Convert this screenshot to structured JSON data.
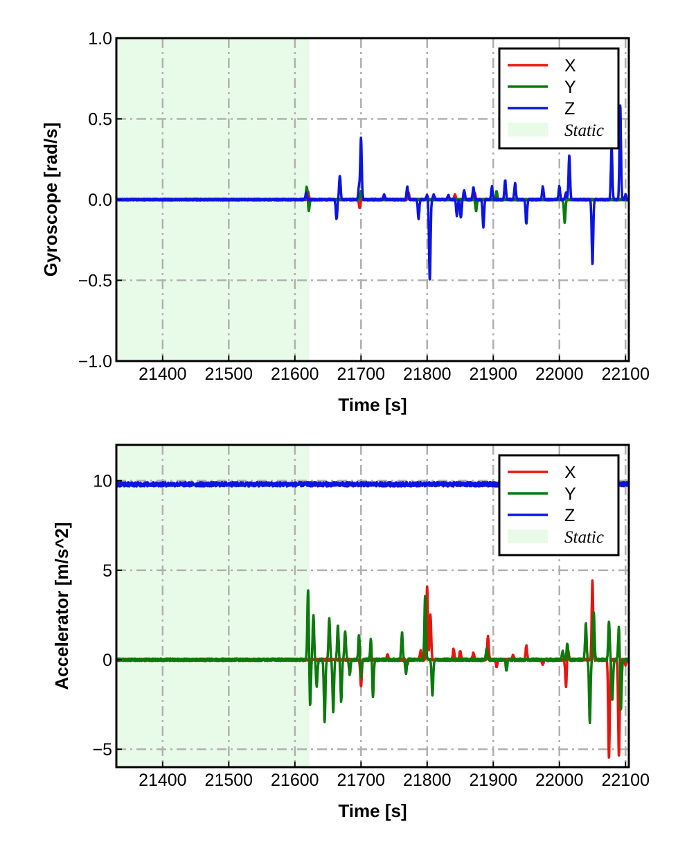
{
  "colors": {
    "x": "#e8150f",
    "y": "#0b7a0b",
    "z": "#0c15e0",
    "static": "#e8fbe8",
    "grid": "#b0b0b0"
  },
  "chart_data": [
    {
      "type": "line",
      "title": "",
      "xlabel": "Time [s]",
      "ylabel": "Gyroscope [rad/s]",
      "xlim": [
        21330,
        22105
      ],
      "ylim": [
        -1.0,
        1.0
      ],
      "xticks": [
        21400,
        21500,
        21600,
        21700,
        21800,
        21900,
        22000,
        22100
      ],
      "xtick_labels": [
        "21400",
        "21500",
        "21600",
        "21700",
        "21800",
        "21900",
        "22000",
        "22100"
      ],
      "yticks": [
        -1.0,
        -0.5,
        0.0,
        0.5,
        1.0
      ],
      "ytick_labels": [
        "−1.0",
        "−0.5",
        "0.0",
        "0.5",
        "1.0"
      ],
      "grid": true,
      "legend_position": "top-right",
      "static_region": [
        21330,
        21622
      ],
      "legend": [
        "X",
        "Y",
        "Z",
        "Static"
      ],
      "series": [
        {
          "name": "X",
          "color": "#e8150f",
          "baseline": 0.0,
          "noise": 0.004,
          "events": [
            [
              21620,
              0.05
            ],
            [
              21698,
              -0.05
            ],
            [
              21772,
              0.04
            ],
            [
              21842,
              0.03
            ],
            [
              21872,
              0.04
            ],
            [
              22010,
              0.04
            ]
          ]
        },
        {
          "name": "Y",
          "color": "#0b7a0b",
          "baseline": 0.0,
          "noise": 0.004,
          "events": [
            [
              21618,
              0.08
            ],
            [
              21621,
              -0.07
            ],
            [
              21700,
              0.05
            ],
            [
              21770,
              0.06
            ],
            [
              21874,
              -0.07
            ],
            [
              22008,
              -0.14
            ],
            [
              21905,
              0.05
            ]
          ]
        },
        {
          "name": "Z",
          "color": "#0c15e0",
          "baseline": 0.0,
          "noise": 0.005,
          "events": [
            [
              21617,
              0.04
            ],
            [
              21663,
              -0.12
            ],
            [
              21668,
              0.15
            ],
            [
              21697,
              0.08
            ],
            [
              21700,
              0.38
            ],
            [
              21735,
              0.03
            ],
            [
              21770,
              0.08
            ],
            [
              21787,
              -0.12
            ],
            [
              21800,
              0.03
            ],
            [
              21804,
              -0.5
            ],
            [
              21810,
              0.03
            ],
            [
              21832,
              0.03
            ],
            [
              21845,
              -0.1
            ],
            [
              21851,
              -0.11
            ],
            [
              21856,
              0.06
            ],
            [
              21870,
              0.08
            ],
            [
              21885,
              -0.17
            ],
            [
              21898,
              0.08
            ],
            [
              21918,
              0.12
            ],
            [
              21933,
              0.1
            ],
            [
              21950,
              -0.15
            ],
            [
              21975,
              0.08
            ],
            [
              22000,
              0.08
            ],
            [
              22010,
              0.04
            ],
            [
              22015,
              0.27
            ],
            [
              22050,
              -0.4
            ],
            [
              22079,
              0.32
            ],
            [
              22092,
              0.58
            ],
            [
              22100,
              0.03
            ]
          ]
        }
      ]
    },
    {
      "type": "line",
      "title": "",
      "xlabel": "Time [s]",
      "ylabel": "Accelerator [m/s^2]",
      "xlim": [
        21330,
        22105
      ],
      "ylim": [
        -6.0,
        12.0
      ],
      "xticks": [
        21400,
        21500,
        21600,
        21700,
        21800,
        21900,
        22000,
        22100
      ],
      "xtick_labels": [
        "21400",
        "21500",
        "21600",
        "21700",
        "21800",
        "21900",
        "22000",
        "22100"
      ],
      "yticks": [
        -5,
        0,
        5,
        10
      ],
      "ytick_labels": [
        "−5",
        "0",
        "5",
        "10"
      ],
      "grid": true,
      "legend_position": "top-right",
      "static_region": [
        21330,
        21622
      ],
      "legend": [
        "X",
        "Y",
        "Z",
        "Static"
      ],
      "series": [
        {
          "name": "Z",
          "color": "#0c15e0",
          "baseline": 9.8,
          "noise": 0.12,
          "events": []
        },
        {
          "name": "X",
          "color": "#e8150f",
          "baseline": 0.0,
          "noise": 0.06,
          "events": [
            [
              21700,
              -1.5
            ],
            [
              21740,
              0.3
            ],
            [
              21770,
              -0.3
            ],
            [
              21790,
              0.5
            ],
            [
              21800,
              4.1
            ],
            [
              21805,
              2.5
            ],
            [
              21840,
              0.6
            ],
            [
              21850,
              0.5
            ],
            [
              21870,
              0.4
            ],
            [
              21892,
              1.3
            ],
            [
              21905,
              -0.4
            ],
            [
              21930,
              0.3
            ],
            [
              21950,
              0.8
            ],
            [
              21975,
              -0.3
            ],
            [
              22010,
              -1.5
            ],
            [
              22013,
              0.6
            ],
            [
              22050,
              4.4
            ],
            [
              22075,
              -5.5
            ],
            [
              22090,
              -5.4
            ],
            [
              22100,
              -0.3
            ]
          ]
        },
        {
          "name": "Y",
          "color": "#0b7a0b",
          "baseline": 0.0,
          "noise": 0.07,
          "events": [
            [
              21620,
              4.0
            ],
            [
              21623,
              -2.6
            ],
            [
              21628,
              2.5
            ],
            [
              21633,
              -1.5
            ],
            [
              21645,
              -3.5
            ],
            [
              21652,
              2.3
            ],
            [
              21658,
              -2.9
            ],
            [
              21665,
              1.9
            ],
            [
              21670,
              -2.3
            ],
            [
              21676,
              1.6
            ],
            [
              21683,
              -0.8
            ],
            [
              21697,
              1.4
            ],
            [
              21700,
              -1.0
            ],
            [
              21715,
              1.2
            ],
            [
              21718,
              -2.1
            ],
            [
              21762,
              1.5
            ],
            [
              21768,
              -0.8
            ],
            [
              21797,
              3.6
            ],
            [
              21808,
              -2.0
            ],
            [
              21890,
              0.6
            ],
            [
              21920,
              -0.6
            ],
            [
              22005,
              0.5
            ],
            [
              22012,
              0.9
            ],
            [
              22040,
              2.0
            ],
            [
              22046,
              -3.5
            ],
            [
              22052,
              2.7
            ],
            [
              22075,
              2.1
            ],
            [
              22080,
              -2.3
            ],
            [
              22090,
              1.9
            ],
            [
              22093,
              -2.8
            ]
          ]
        }
      ]
    }
  ]
}
